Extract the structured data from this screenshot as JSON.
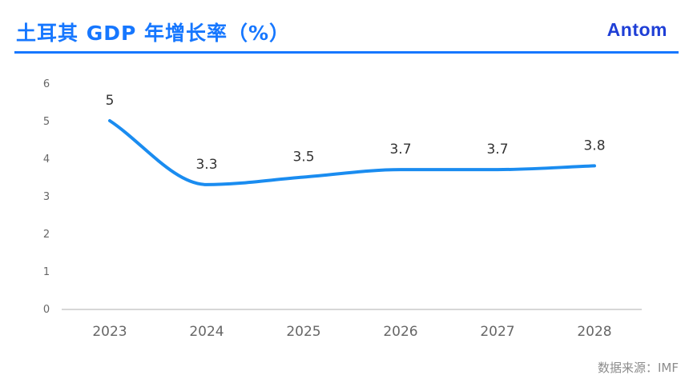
{
  "header": {
    "title": "土耳其 GDP 年增长率（%）",
    "brand": "Antom"
  },
  "footer": {
    "source": "数据来源：IMF"
  },
  "colors": {
    "accent": "#1677ff",
    "line": "#1a8cf0",
    "brand": "#1f3fd6"
  },
  "chart_data": {
    "type": "line",
    "title": "",
    "xlabel": "",
    "ylabel": "",
    "categories": [
      "2023",
      "2024",
      "2025",
      "2026",
      "2027",
      "2028"
    ],
    "series": [
      {
        "values": [
          5,
          3.3,
          3.5,
          3.7,
          3.7,
          3.8
        ],
        "labels": [
          "5",
          "3.3",
          "3.5",
          "3.7",
          "3.7",
          "3.8"
        ]
      }
    ],
    "ylim": [
      0,
      6
    ],
    "yticks": [
      "0",
      "1",
      "2",
      "3",
      "4",
      "5",
      "6"
    ],
    "smooth": true,
    "drop_lines": true,
    "grid": false,
    "legend": "none"
  }
}
